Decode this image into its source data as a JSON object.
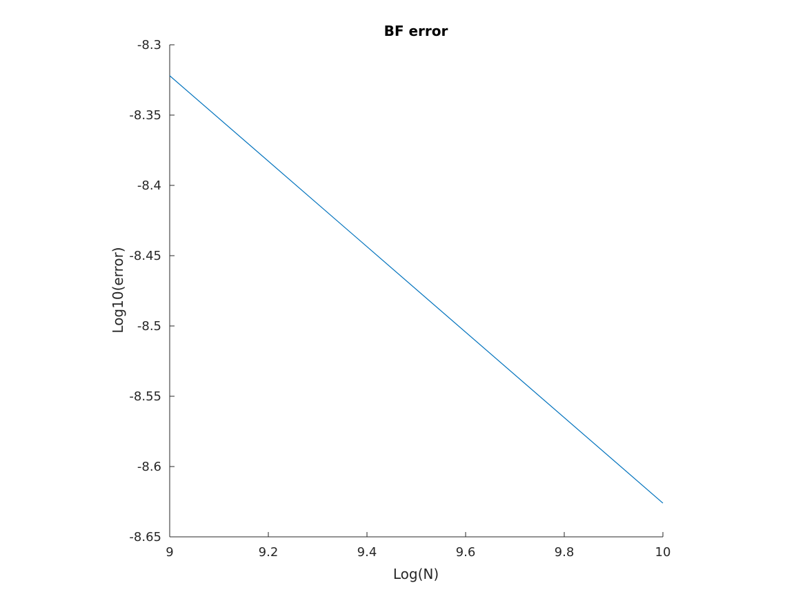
{
  "chart_data": {
    "type": "line",
    "title": "BF error",
    "xlabel": "Log(N)",
    "ylabel": "Log10(error)",
    "xlim": [
      9,
      10
    ],
    "ylim": [
      -8.65,
      -8.3
    ],
    "xticks": [
      9,
      9.2,
      9.4,
      9.6,
      9.8,
      10
    ],
    "xtick_labels": [
      "9",
      "9.2",
      "9.4",
      "9.6",
      "9.8",
      "10"
    ],
    "yticks": [
      -8.3,
      -8.35,
      -8.4,
      -8.45,
      -8.5,
      -8.55,
      -8.6,
      -8.65
    ],
    "ytick_labels": [
      "-8.3",
      "-8.35",
      "-8.4",
      "-8.45",
      "-8.5",
      "-8.55",
      "-8.6",
      "-8.65"
    ],
    "grid": false,
    "legend": "none",
    "series": [
      {
        "color": "#0072BD",
        "x": [
          9,
          10
        ],
        "y": [
          -8.322,
          -8.626
        ]
      }
    ]
  }
}
